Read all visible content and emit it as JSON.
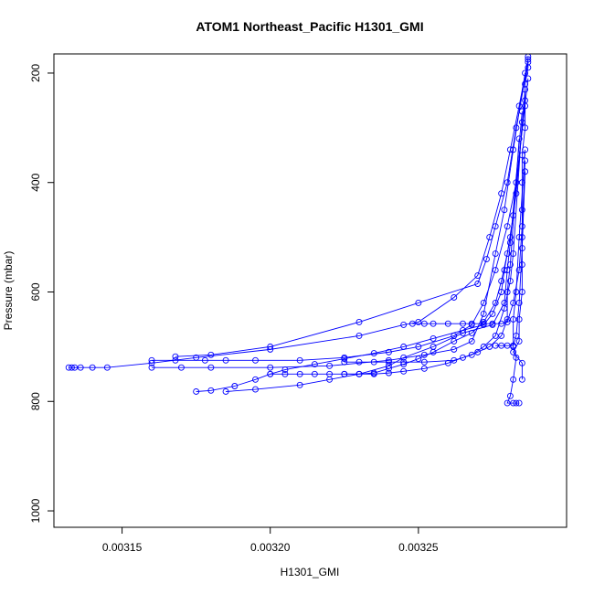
{
  "chart_data": {
    "type": "scatter",
    "title": "ATOM1 Northeast_Pacific H1301_GMI",
    "xlabel": "H1301_GMI",
    "ylabel": "Pressure (mbar)",
    "xlim": [
      0.003127,
      0.0033
    ],
    "ylim": [
      1030,
      165
    ],
    "y_reversed": true,
    "grid": false,
    "legend": "none",
    "color": "#0000ff",
    "marker": "open-circle",
    "connect_points": true,
    "x_ticks": [
      "0.00315",
      "0.00320",
      "0.00325"
    ],
    "x_tick_values": [
      0.00315,
      0.0032,
      0.00325
    ],
    "y_ticks": [
      "200",
      "400",
      "600",
      "800",
      "1000"
    ],
    "y_tick_values": [
      200,
      400,
      600,
      800,
      1000
    ],
    "series": [
      {
        "points": [
          [
            0.003287,
            170
          ],
          [
            0.003287,
            190
          ],
          [
            0.003286,
            220
          ],
          [
            0.003286,
            260
          ],
          [
            0.003286,
            300
          ],
          [
            0.003285,
            350
          ],
          [
            0.003285,
            400
          ],
          [
            0.003285,
            450
          ],
          [
            0.003285,
            500
          ],
          [
            0.003285,
            550
          ],
          [
            0.003285,
            600
          ],
          [
            0.003284,
            650
          ],
          [
            0.003284,
            690
          ],
          [
            0.003282,
            710
          ],
          [
            0.003285,
            730
          ],
          [
            0.003285,
            760
          ]
        ]
      },
      {
        "points": [
          [
            0.003287,
            175
          ],
          [
            0.003284,
            260
          ],
          [
            0.003281,
            340
          ],
          [
            0.003278,
            420
          ],
          [
            0.003274,
            500
          ],
          [
            0.00327,
            570
          ],
          [
            0.003262,
            610
          ],
          [
            0.00325,
            655
          ],
          [
            0.003245,
            660
          ],
          [
            0.00323,
            680
          ],
          [
            0.0032,
            705
          ],
          [
            0.003175,
            720
          ],
          [
            0.00316,
            730
          ],
          [
            0.003145,
            738
          ],
          [
            0.00314,
            738
          ],
          [
            0.003136,
            738
          ],
          [
            0.003134,
            738
          ],
          [
            0.003133,
            738
          ],
          [
            0.003132,
            738
          ]
        ]
      },
      {
        "points": [
          [
            0.003287,
            180
          ],
          [
            0.003283,
            300
          ],
          [
            0.00328,
            400
          ],
          [
            0.003276,
            480
          ],
          [
            0.003273,
            540
          ],
          [
            0.00327,
            585
          ],
          [
            0.00325,
            620
          ],
          [
            0.00323,
            655
          ],
          [
            0.0032,
            700
          ],
          [
            0.00318,
            715
          ],
          [
            0.003168,
            718
          ]
        ]
      },
      {
        "points": [
          [
            0.003286,
            200
          ],
          [
            0.003282,
            340
          ],
          [
            0.003279,
            450
          ],
          [
            0.003276,
            530
          ],
          [
            0.003272,
            640
          ],
          [
            0.003268,
            690
          ],
          [
            0.003262,
            705
          ],
          [
            0.003252,
            715
          ],
          [
            0.00324,
            725
          ],
          [
            0.00322,
            735
          ],
          [
            0.0032,
            738
          ],
          [
            0.00318,
            738
          ],
          [
            0.00317,
            738
          ],
          [
            0.00316,
            738
          ]
        ]
      },
      {
        "points": [
          [
            0.003287,
            210
          ],
          [
            0.003283,
            400
          ],
          [
            0.00328,
            480
          ],
          [
            0.003276,
            560
          ],
          [
            0.003272,
            620
          ],
          [
            0.003268,
            660
          ],
          [
            0.003262,
            680
          ],
          [
            0.00325,
            700
          ],
          [
            0.00324,
            710
          ],
          [
            0.003225,
            720
          ],
          [
            0.00321,
            725
          ],
          [
            0.003195,
            725
          ],
          [
            0.003185,
            725
          ],
          [
            0.003178,
            725
          ],
          [
            0.003168,
            725
          ],
          [
            0.00316,
            725
          ]
        ]
      },
      {
        "points": [
          [
            0.003286,
            230
          ],
          [
            0.003283,
            420
          ],
          [
            0.003281,
            500
          ],
          [
            0.003279,
            560
          ],
          [
            0.003278,
            600
          ],
          [
            0.003275,
            640
          ],
          [
            0.003272,
            660
          ],
          [
            0.003265,
            670
          ],
          [
            0.003255,
            685
          ],
          [
            0.003245,
            700
          ],
          [
            0.003235,
            712
          ],
          [
            0.003225,
            722
          ],
          [
            0.003215,
            732
          ],
          [
            0.003205,
            742
          ],
          [
            0.0032,
            750
          ],
          [
            0.003195,
            760
          ],
          [
            0.003188,
            772
          ],
          [
            0.00318,
            780
          ],
          [
            0.003175,
            782
          ]
        ]
      },
      {
        "points": [
          [
            0.003286,
            250
          ],
          [
            0.003282,
            460
          ],
          [
            0.00328,
            530
          ],
          [
            0.003278,
            580
          ],
          [
            0.003276,
            620
          ],
          [
            0.003272,
            655
          ],
          [
            0.003268,
            675
          ],
          [
            0.003262,
            690
          ],
          [
            0.003255,
            710
          ],
          [
            0.00325,
            722
          ],
          [
            0.003245,
            732
          ],
          [
            0.00324,
            740
          ],
          [
            0.003235,
            748
          ],
          [
            0.00323,
            750
          ],
          [
            0.003225,
            750
          ],
          [
            0.00322,
            750
          ],
          [
            0.003215,
            750
          ],
          [
            0.00321,
            750
          ],
          [
            0.003205,
            750
          ],
          [
            0.0032,
            750
          ]
        ]
      },
      {
        "points": [
          [
            0.003285,
            270
          ],
          [
            0.003281,
            510
          ],
          [
            0.00328,
            560
          ],
          [
            0.003279,
            620
          ],
          [
            0.003275,
            660
          ],
          [
            0.003265,
            675
          ],
          [
            0.003255,
            700
          ],
          [
            0.003245,
            720
          ],
          [
            0.00324,
            735
          ],
          [
            0.00323,
            750
          ],
          [
            0.00322,
            760
          ],
          [
            0.00321,
            770
          ],
          [
            0.003195,
            778
          ],
          [
            0.003185,
            782
          ]
        ]
      },
      {
        "points": [
          [
            0.003285,
            290
          ],
          [
            0.003282,
            530
          ],
          [
            0.003281,
            580
          ],
          [
            0.003279,
            630
          ],
          [
            0.003276,
            680
          ],
          [
            0.003272,
            700
          ],
          [
            0.003268,
            715
          ],
          [
            0.003262,
            725
          ],
          [
            0.003252,
            728
          ],
          [
            0.003245,
            728
          ],
          [
            0.00324,
            728
          ],
          [
            0.003235,
            728
          ],
          [
            0.00323,
            728
          ],
          [
            0.003225,
            728
          ]
        ]
      },
      {
        "points": [
          [
            0.003284,
            320
          ],
          [
            0.003281,
            550
          ],
          [
            0.00328,
            600
          ],
          [
            0.00328,
            650
          ],
          [
            0.003278,
            680
          ],
          [
            0.003274,
            700
          ],
          [
            0.00327,
            710
          ],
          [
            0.003265,
            720
          ],
          [
            0.00326,
            730
          ],
          [
            0.003252,
            740
          ],
          [
            0.003245,
            745
          ],
          [
            0.00324,
            748
          ],
          [
            0.003235,
            750
          ],
          [
            0.00323,
            750
          ],
          [
            0.003225,
            750
          ]
        ]
      },
      {
        "points": [
          [
            0.003286,
            340
          ],
          [
            0.003284,
            500
          ],
          [
            0.003283,
            600
          ],
          [
            0.003282,
            650
          ],
          [
            0.003282,
            700
          ],
          [
            0.003283,
            720
          ],
          [
            0.003282,
            760
          ],
          [
            0.003281,
            790
          ],
          [
            0.00328,
            803
          ],
          [
            0.003282,
            803
          ],
          [
            0.003283,
            803
          ],
          [
            0.003284,
            803
          ]
        ]
      },
      {
        "points": [
          [
            0.003286,
            360
          ],
          [
            0.003285,
            480
          ],
          [
            0.003284,
            560
          ],
          [
            0.003282,
            620
          ],
          [
            0.00328,
            655
          ],
          [
            0.003278,
            658
          ],
          [
            0.003275,
            658
          ],
          [
            0.003272,
            658
          ],
          [
            0.003268,
            658
          ],
          [
            0.003265,
            658
          ],
          [
            0.00326,
            658
          ],
          [
            0.003255,
            658
          ],
          [
            0.003252,
            658
          ],
          [
            0.003248,
            658
          ]
        ]
      },
      {
        "points": [
          [
            0.003286,
            380
          ],
          [
            0.003285,
            520
          ],
          [
            0.003284,
            620
          ],
          [
            0.003283,
            680
          ],
          [
            0.003282,
            698
          ],
          [
            0.00328,
            698
          ],
          [
            0.003278,
            698
          ],
          [
            0.003276,
            698
          ]
        ]
      }
    ]
  }
}
